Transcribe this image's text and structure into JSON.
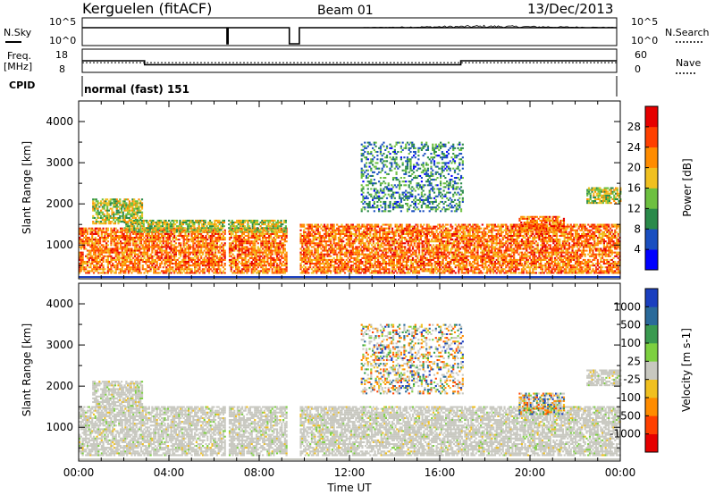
{
  "header": {
    "station": "Kerguelen (fitACF)",
    "beam": "Beam 01",
    "date": "13/Dec/2013"
  },
  "top_panels": {
    "nsky": {
      "left_label": "N.Sky",
      "right_label": "N.Search",
      "left_ticks": [
        "10^5",
        "10^0"
      ],
      "right_ticks": [
        "10^5",
        "10^0"
      ],
      "segments": [
        {
          "from": 0.0,
          "to": 6.5,
          "level": "high"
        },
        {
          "from": 6.5,
          "to": 6.55,
          "level": "low"
        },
        {
          "from": 6.55,
          "to": 9.3,
          "level": "high"
        },
        {
          "from": 9.3,
          "to": 9.75,
          "level": "low"
        },
        {
          "from": 9.75,
          "to": 24.0,
          "level": "high"
        }
      ]
    },
    "freq": {
      "left_label_lines": [
        "Freq.",
        "[MHz]"
      ],
      "right_label": "Nave",
      "left_ticks": [
        "18",
        "8"
      ],
      "right_ticks": [
        "60",
        "0"
      ],
      "steps": [
        {
          "from": 0.0,
          "to": 2.8,
          "value_mhz": 13
        },
        {
          "from": 2.8,
          "to": 17.0,
          "value_mhz": 11
        },
        {
          "from": 17.0,
          "to": 24.0,
          "value_mhz": 13
        }
      ],
      "nave_dotted": 8
    },
    "cpid": {
      "label": "CPID",
      "text": "normal (fast) 151"
    }
  },
  "chart_data": [
    {
      "type": "heatmap",
      "panel": "power",
      "ylabel": "Slant Range [km]",
      "yticks": [
        "1000",
        "2000",
        "3000",
        "4000"
      ],
      "ylim": [
        180,
        4500
      ],
      "xlim": [
        0,
        24
      ],
      "colorbar": {
        "label": "Power [dB]",
        "ticks": [
          "4",
          "8",
          "12",
          "16",
          "20",
          "24",
          "28"
        ],
        "colors": [
          "#0000ff",
          "#1a4fc0",
          "#2a8a4a",
          "#6dc040",
          "#f0c020",
          "#ff8c00",
          "#ff4000",
          "#e60000"
        ]
      },
      "echo_regions": [
        {
          "x0": 0.0,
          "x1": 9.2,
          "y0": 300,
          "y1": 1400,
          "intensity": "high"
        },
        {
          "x0": 0.6,
          "x1": 2.8,
          "y0": 1500,
          "y1": 2100,
          "intensity": "medium"
        },
        {
          "x0": 2.0,
          "x1": 9.2,
          "y0": 1300,
          "y1": 1600,
          "intensity": "medium"
        },
        {
          "x0": 9.8,
          "x1": 24.0,
          "y0": 300,
          "y1": 1500,
          "intensity": "high"
        },
        {
          "x0": 12.5,
          "x1": 17.0,
          "y0": 1800,
          "y1": 3500,
          "intensity": "low"
        },
        {
          "x0": 19.5,
          "x1": 21.5,
          "y0": 1300,
          "y1": 1700,
          "intensity": "high"
        },
        {
          "x0": 22.5,
          "x1": 24.0,
          "y0": 2000,
          "y1": 2400,
          "intensity": "medium"
        }
      ]
    },
    {
      "type": "heatmap",
      "panel": "velocity",
      "ylabel": "Slant Range [km]",
      "yticks": [
        "1000",
        "2000",
        "3000",
        "4000"
      ],
      "ylim": [
        180,
        4500
      ],
      "xlim": [
        0,
        24
      ],
      "xticks": [
        "00:00",
        "04:00",
        "08:00",
        "12:00",
        "16:00",
        "20:00",
        "00:00"
      ],
      "xlabel": "Time UT",
      "colorbar": {
        "label": "Velocity [m s-1]",
        "ticks": [
          "1000",
          "500",
          "100",
          "25",
          "-25",
          "-100",
          "-500",
          "-1000"
        ],
        "colors": [
          "#1a3fbf",
          "#2a6a9a",
          "#3a9a50",
          "#7dd040",
          "#c8c8c0",
          "#f0c020",
          "#ff8c00",
          "#ff4000",
          "#e60000"
        ]
      },
      "echo_regions": [
        {
          "x0": 0.0,
          "x1": 9.2,
          "y0": 300,
          "y1": 1500,
          "velocity": "ground"
        },
        {
          "x0": 0.6,
          "x1": 2.8,
          "y0": 1500,
          "y1": 2100,
          "velocity": "ground"
        },
        {
          "x0": 9.8,
          "x1": 24.0,
          "y0": 300,
          "y1": 1500,
          "velocity": "ground"
        },
        {
          "x0": 12.5,
          "x1": 17.0,
          "y0": 1800,
          "y1": 3500,
          "velocity": "mixed"
        },
        {
          "x0": 19.5,
          "x1": 21.5,
          "y0": 1300,
          "y1": 1800,
          "velocity": "mixed"
        },
        {
          "x0": 22.5,
          "x1": 24.0,
          "y0": 2000,
          "y1": 2400,
          "velocity": "ground"
        }
      ]
    }
  ]
}
